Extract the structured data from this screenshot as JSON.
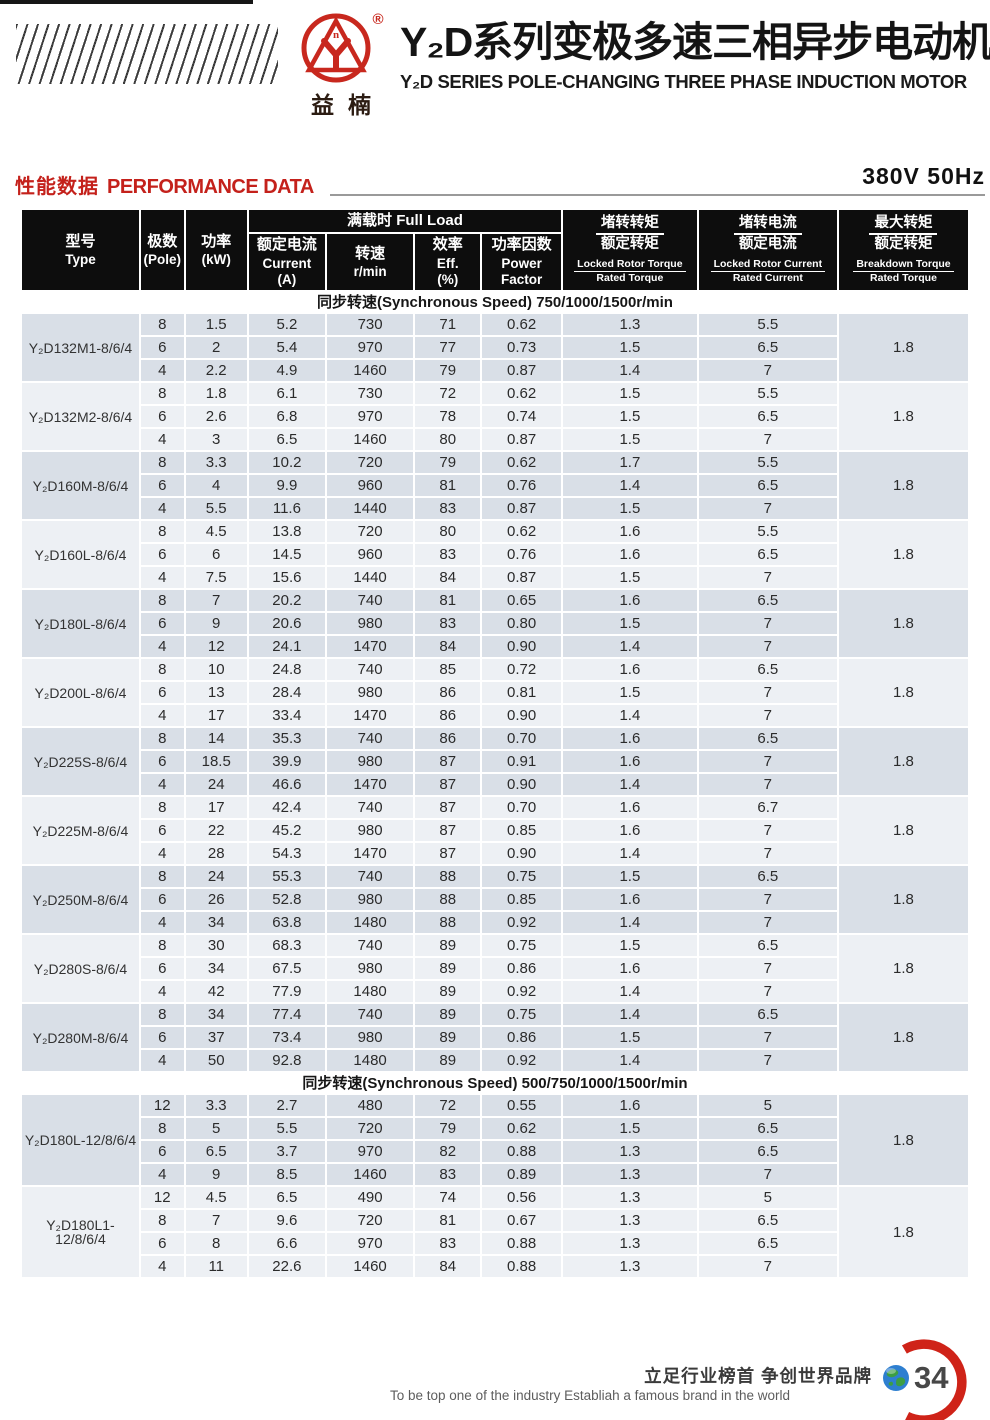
{
  "header": {
    "brand_cn": "益楠",
    "registered_mark": "®",
    "title_cn": "Y₂D系列变极多速三相异步电动机",
    "title_en": "Y₂D SERIES POLE-CHANGING THREE PHASE INDUCTION MOTOR"
  },
  "perf_heading": {
    "cn": "性能数据",
    "en": "PERFORMANCE DATA",
    "rating": "380V 50Hz"
  },
  "table_header": {
    "type_cn": "型号",
    "type_en": "Type",
    "pole_cn": "极数",
    "pole_en": "(Pole)",
    "power_cn": "功率",
    "power_en": "(kW)",
    "full_load": "满载时  Full Load",
    "current_cn": "额定电流",
    "current_en": "Current",
    "current_unit": "(A)",
    "speed_cn": "转速",
    "speed_en": "r/min",
    "eff_cn": "效率",
    "eff_en": "Eff.",
    "eff_unit": "(%)",
    "pf_cn": "功率因数",
    "pf_en1": "Power",
    "pf_en2": "Factor",
    "lrt_cn_num": "堵转转矩",
    "lrt_cn_den": "额定转矩",
    "lrt_en_num": "Locked Rotor Torque",
    "lrt_en_den": "Rated Torque",
    "lrc_cn_num": "堵转电流",
    "lrc_cn_den": "额定电流",
    "lrc_en_num": "Locked Rotor Current",
    "lrc_en_den": "Rated Current",
    "bt_cn_num": "最大转矩",
    "bt_cn_den": "额定转矩",
    "bt_en_num": "Breakdown Torque",
    "bt_en_den": "Rated Torque"
  },
  "sections": [
    {
      "title": "同步转速(Synchronous Speed) 750/1000/1500r/min",
      "groups": [
        {
          "model": "Y₂D132M1-8/6/4",
          "breakdown_torque": "1.8",
          "rows": [
            [
              "8",
              "1.5",
              "5.2",
              "730",
              "71",
              "0.62",
              "1.3",
              "5.5"
            ],
            [
              "6",
              "2",
              "5.4",
              "970",
              "77",
              "0.73",
              "1.5",
              "6.5"
            ],
            [
              "4",
              "2.2",
              "4.9",
              "1460",
              "79",
              "0.87",
              "1.4",
              "7"
            ]
          ]
        },
        {
          "model": "Y₂D132M2-8/6/4",
          "breakdown_torque": "1.8",
          "rows": [
            [
              "8",
              "1.8",
              "6.1",
              "730",
              "72",
              "0.62",
              "1.5",
              "5.5"
            ],
            [
              "6",
              "2.6",
              "6.8",
              "970",
              "78",
              "0.74",
              "1.5",
              "6.5"
            ],
            [
              "4",
              "3",
              "6.5",
              "1460",
              "80",
              "0.87",
              "1.5",
              "7"
            ]
          ]
        },
        {
          "model": "Y₂D160M-8/6/4",
          "breakdown_torque": "1.8",
          "rows": [
            [
              "8",
              "3.3",
              "10.2",
              "720",
              "79",
              "0.62",
              "1.7",
              "5.5"
            ],
            [
              "6",
              "4",
              "9.9",
              "960",
              "81",
              "0.76",
              "1.4",
              "6.5"
            ],
            [
              "4",
              "5.5",
              "11.6",
              "1440",
              "83",
              "0.87",
              "1.5",
              "7"
            ]
          ]
        },
        {
          "model": "Y₂D160L-8/6/4",
          "breakdown_torque": "1.8",
          "rows": [
            [
              "8",
              "4.5",
              "13.8",
              "720",
              "80",
              "0.62",
              "1.6",
              "5.5"
            ],
            [
              "6",
              "6",
              "14.5",
              "960",
              "83",
              "0.76",
              "1.6",
              "6.5"
            ],
            [
              "4",
              "7.5",
              "15.6",
              "1440",
              "84",
              "0.87",
              "1.5",
              "7"
            ]
          ]
        },
        {
          "model": "Y₂D180L-8/6/4",
          "breakdown_torque": "1.8",
          "rows": [
            [
              "8",
              "7",
              "20.2",
              "740",
              "81",
              "0.65",
              "1.6",
              "6.5"
            ],
            [
              "6",
              "9",
              "20.6",
              "980",
              "83",
              "0.80",
              "1.5",
              "7"
            ],
            [
              "4",
              "12",
              "24.1",
              "1470",
              "84",
              "0.90",
              "1.4",
              "7"
            ]
          ]
        },
        {
          "model": "Y₂D200L-8/6/4",
          "breakdown_torque": "1.8",
          "rows": [
            [
              "8",
              "10",
              "24.8",
              "740",
              "85",
              "0.72",
              "1.6",
              "6.5"
            ],
            [
              "6",
              "13",
              "28.4",
              "980",
              "86",
              "0.81",
              "1.5",
              "7"
            ],
            [
              "4",
              "17",
              "33.4",
              "1470",
              "86",
              "0.90",
              "1.4",
              "7"
            ]
          ]
        },
        {
          "model": "Y₂D225S-8/6/4",
          "breakdown_torque": "1.8",
          "rows": [
            [
              "8",
              "14",
              "35.3",
              "740",
              "86",
              "0.70",
              "1.6",
              "6.5"
            ],
            [
              "6",
              "18.5",
              "39.9",
              "980",
              "87",
              "0.91",
              "1.6",
              "7"
            ],
            [
              "4",
              "24",
              "46.6",
              "1470",
              "87",
              "0.90",
              "1.4",
              "7"
            ]
          ]
        },
        {
          "model": "Y₂D225M-8/6/4",
          "breakdown_torque": "1.8",
          "rows": [
            [
              "8",
              "17",
              "42.4",
              "740",
              "87",
              "0.70",
              "1.6",
              "6.7"
            ],
            [
              "6",
              "22",
              "45.2",
              "980",
              "87",
              "0.85",
              "1.6",
              "7"
            ],
            [
              "4",
              "28",
              "54.3",
              "1470",
              "87",
              "0.90",
              "1.4",
              "7"
            ]
          ]
        },
        {
          "model": "Y₂D250M-8/6/4",
          "breakdown_torque": "1.8",
          "rows": [
            [
              "8",
              "24",
              "55.3",
              "740",
              "88",
              "0.75",
              "1.5",
              "6.5"
            ],
            [
              "6",
              "26",
              "52.8",
              "980",
              "88",
              "0.85",
              "1.6",
              "7"
            ],
            [
              "4",
              "34",
              "63.8",
              "1480",
              "88",
              "0.92",
              "1.4",
              "7"
            ]
          ]
        },
        {
          "model": "Y₂D280S-8/6/4",
          "breakdown_torque": "1.8",
          "rows": [
            [
              "8",
              "30",
              "68.3",
              "740",
              "89",
              "0.75",
              "1.5",
              "6.5"
            ],
            [
              "6",
              "34",
              "67.5",
              "980",
              "89",
              "0.86",
              "1.6",
              "7"
            ],
            [
              "4",
              "42",
              "77.9",
              "1480",
              "89",
              "0.92",
              "1.4",
              "7"
            ]
          ]
        },
        {
          "model": "Y₂D280M-8/6/4",
          "breakdown_torque": "1.8",
          "rows": [
            [
              "8",
              "34",
              "77.4",
              "740",
              "89",
              "0.75",
              "1.4",
              "6.5"
            ],
            [
              "6",
              "37",
              "73.4",
              "980",
              "89",
              "0.86",
              "1.5",
              "7"
            ],
            [
              "4",
              "50",
              "92.8",
              "1480",
              "89",
              "0.92",
              "1.4",
              "7"
            ]
          ]
        }
      ]
    },
    {
      "title": "同步转速(Synchronous Speed) 500/750/1000/1500r/min",
      "groups": [
        {
          "model": "Y₂D180L-12/8/6/4",
          "breakdown_torque": "1.8",
          "rows": [
            [
              "12",
              "3.3",
              "2.7",
              "480",
              "72",
              "0.55",
              "1.6",
              "5"
            ],
            [
              "8",
              "5",
              "5.5",
              "720",
              "79",
              "0.62",
              "1.5",
              "6.5"
            ],
            [
              "6",
              "6.5",
              "3.7",
              "970",
              "82",
              "0.88",
              "1.3",
              "6.5"
            ],
            [
              "4",
              "9",
              "8.5",
              "1460",
              "83",
              "0.89",
              "1.3",
              "7"
            ]
          ]
        },
        {
          "model": "Y₂D180L1-12/8/6/4",
          "breakdown_torque": "1.8",
          "rows": [
            [
              "12",
              "4.5",
              "6.5",
              "490",
              "74",
              "0.56",
              "1.3",
              "5"
            ],
            [
              "8",
              "7",
              "9.6",
              "720",
              "81",
              "0.67",
              "1.3",
              "6.5"
            ],
            [
              "6",
              "8",
              "6.6",
              "970",
              "83",
              "0.88",
              "1.3",
              "6.5"
            ],
            [
              "4",
              "11",
              "22.6",
              "1460",
              "84",
              "0.88",
              "1.3",
              "7"
            ]
          ]
        }
      ]
    }
  ],
  "footer": {
    "slogan_cn": "立足行业榜首  争创世界品牌",
    "slogan_en": "To be top one of the industry  Establiah a famous brand in the world",
    "page_number": "34"
  },
  "colors": {
    "accent_red": "#c4211b",
    "header_black": "#0d0d0d",
    "row_dark": "#d9dfe7",
    "row_light": "#edf0f4"
  }
}
